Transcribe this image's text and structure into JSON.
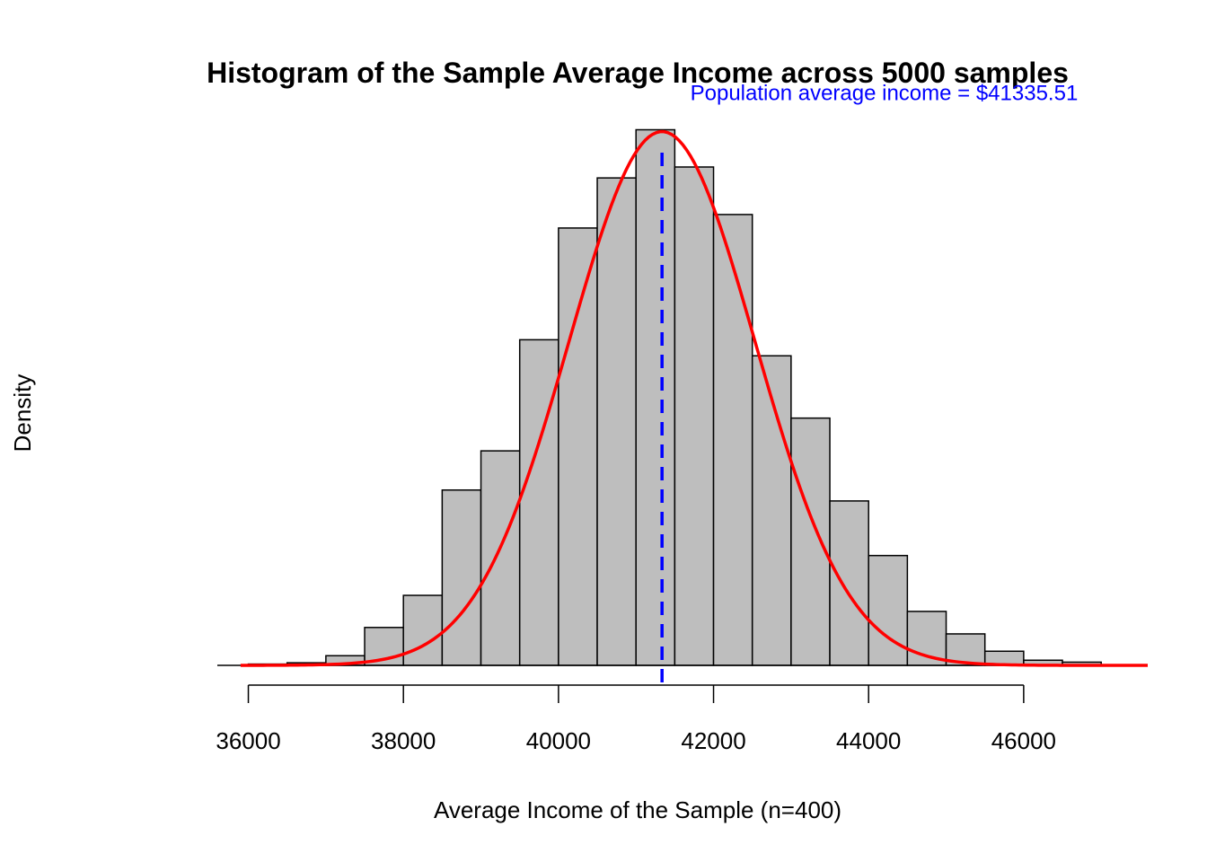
{
  "chart_data": {
    "type": "bar",
    "title": "Histogram of the Sample Average Income across 5000 samples",
    "xlabel": "Average Income of the Sample (n=400)",
    "ylabel": "Density",
    "xlim": [
      35600,
      47600
    ],
    "ylim": [
      0,
      0.000335
    ],
    "x_ticks": [
      "36000",
      "38000",
      "40000",
      "42000",
      "44000",
      "46000"
    ],
    "y_axis_visible": false,
    "grid": false,
    "bin_width": 500,
    "bins": [
      {
        "start": 36000,
        "end": 36500,
        "density": 8e-07
      },
      {
        "start": 36500,
        "end": 37000,
        "density": 1.6e-06
      },
      {
        "start": 37000,
        "end": 37500,
        "density": 6e-06
      },
      {
        "start": 37500,
        "end": 38000,
        "density": 2.36e-05
      },
      {
        "start": 38000,
        "end": 38500,
        "density": 4.36e-05
      },
      {
        "start": 38500,
        "end": 39000,
        "density": 0.0001092
      },
      {
        "start": 39000,
        "end": 39500,
        "density": 0.0001336
      },
      {
        "start": 39500,
        "end": 40000,
        "density": 0.0002028
      },
      {
        "start": 40000,
        "end": 40500,
        "density": 0.0002724
      },
      {
        "start": 40500,
        "end": 41000,
        "density": 0.0003036
      },
      {
        "start": 41000,
        "end": 41500,
        "density": 0.0003336
      },
      {
        "start": 41500,
        "end": 42000,
        "density": 0.0003104
      },
      {
        "start": 42000,
        "end": 42500,
        "density": 0.0002808
      },
      {
        "start": 42500,
        "end": 43000,
        "density": 0.0001928
      },
      {
        "start": 43000,
        "end": 43500,
        "density": 0.000154
      },
      {
        "start": 43500,
        "end": 44000,
        "density": 0.0001024
      },
      {
        "start": 44000,
        "end": 44500,
        "density": 6.84e-05
      },
      {
        "start": 44500,
        "end": 45000,
        "density": 3.36e-05
      },
      {
        "start": 45000,
        "end": 45500,
        "density": 1.96e-05
      },
      {
        "start": 45500,
        "end": 46000,
        "density": 8.8e-06
      },
      {
        "start": 46000,
        "end": 46500,
        "density": 3.2e-06
      },
      {
        "start": 46500,
        "end": 47000,
        "density": 2e-06
      }
    ],
    "bar_color": "#bebebe",
    "bar_edge_color": "#000000",
    "density_curve": {
      "type": "normal",
      "mean": 41335.51,
      "sd": 1200,
      "color": "#ff0000",
      "x_range": [
        35900,
        47600
      ]
    },
    "reference_line": {
      "x": 41335.51,
      "style": "dashed",
      "color": "#0000ff"
    },
    "annotations": [
      {
        "text": "Population average income = $41335.51",
        "x": 44200,
        "y": 0.000352,
        "color": "#0000ff"
      }
    ]
  }
}
